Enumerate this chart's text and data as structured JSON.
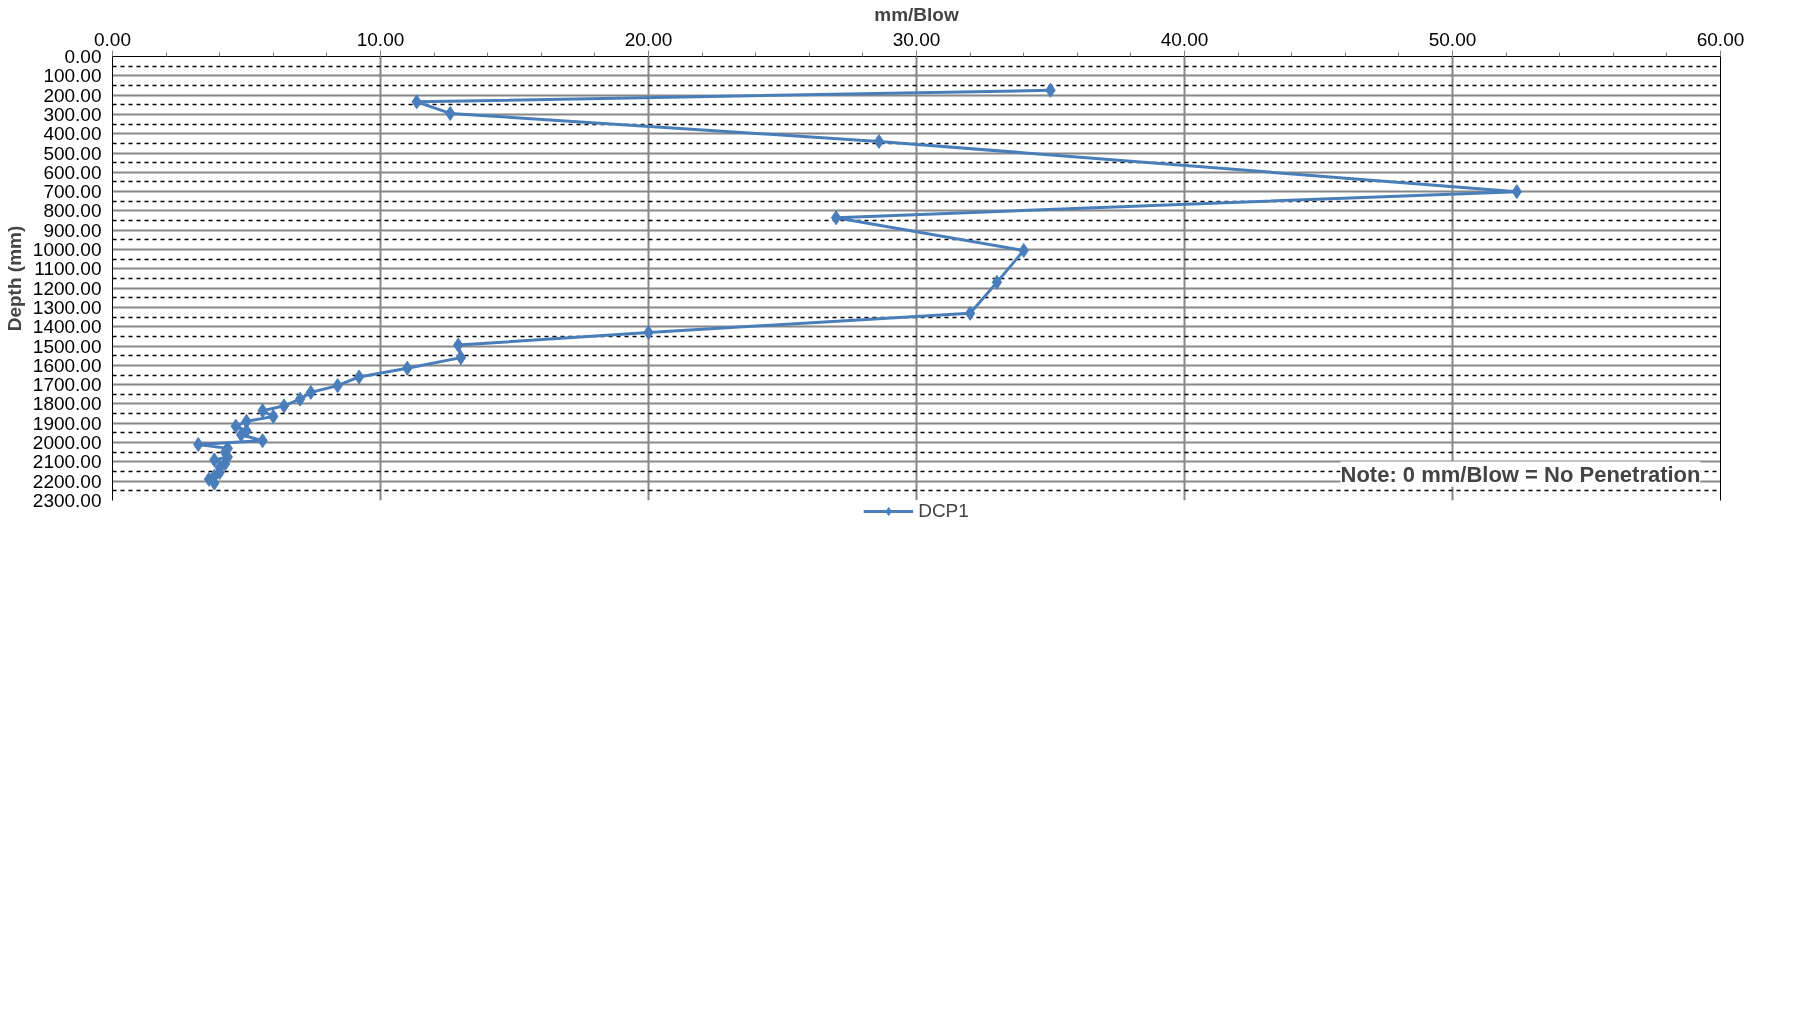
{
  "chart_data": {
    "type": "line",
    "xlabel": "mm/Blow",
    "ylabel": "Depth (mm)",
    "annotations": [
      "Note: 0 mm/Blow = No Penetration"
    ],
    "series": [
      {
        "name": "DCP1",
        "color": "#4a7ebb",
        "x": [
          35.0,
          11.35,
          12.6,
          28.6,
          52.4,
          27.0,
          34.0,
          33.0,
          32.0,
          20.0,
          12.9,
          13.0,
          11.0,
          9.2,
          8.4,
          7.4,
          7.0,
          6.4,
          5.6,
          6.0,
          5.0,
          4.6,
          5.0,
          4.8,
          5.6,
          3.2,
          4.3,
          4.2,
          4.3,
          3.8,
          4.2,
          4.0,
          4.0,
          3.8,
          3.6,
          3.8
        ],
        "values": [
          175,
          235,
          295,
          440,
          700,
          835,
          1005,
          1170,
          1330,
          1430,
          1495,
          1560,
          1615,
          1660,
          1705,
          1740,
          1775,
          1810,
          1835,
          1865,
          1890,
          1915,
          1940,
          1960,
          1990,
          2010,
          2030,
          2050,
          2075,
          2090,
          2110,
          2130,
          2155,
          2175,
          2190,
          2210
        ]
      }
    ],
    "xlim": [
      0,
      60
    ],
    "ylim": [
      2300,
      0
    ],
    "xticks": [
      {
        "value": 0,
        "label": "0.00"
      },
      {
        "value": 10,
        "label": "10.00"
      },
      {
        "value": 20,
        "label": "20.00"
      },
      {
        "value": 30,
        "label": "30.00"
      },
      {
        "value": 40,
        "label": "40.00"
      },
      {
        "value": 50,
        "label": "50.00"
      },
      {
        "value": 60,
        "label": "60.00"
      }
    ],
    "yticks": [
      {
        "value": 0,
        "label": "0.00"
      },
      {
        "value": 100,
        "label": "100.00"
      },
      {
        "value": 200,
        "label": "200.00"
      },
      {
        "value": 300,
        "label": "300.00"
      },
      {
        "value": 400,
        "label": "400.00"
      },
      {
        "value": 500,
        "label": "500.00"
      },
      {
        "value": 600,
        "label": "600.00"
      },
      {
        "value": 700,
        "label": "700.00"
      },
      {
        "value": 800,
        "label": "800.00"
      },
      {
        "value": 900,
        "label": "900.00"
      },
      {
        "value": 1000,
        "label": "1000.00"
      },
      {
        "value": 1100,
        "label": "1100.00"
      },
      {
        "value": 1200,
        "label": "1200.00"
      },
      {
        "value": 1300,
        "label": "1300.00"
      },
      {
        "value": 1400,
        "label": "1400.00"
      },
      {
        "value": 1500,
        "label": "1500.00"
      },
      {
        "value": 1600,
        "label": "1600.00"
      },
      {
        "value": 1700,
        "label": "1700.00"
      },
      {
        "value": 1800,
        "label": "1800.00"
      },
      {
        "value": 1900,
        "label": "1900.00"
      },
      {
        "value": 2000,
        "label": "2000.00"
      },
      {
        "value": 2100,
        "label": "2100.00"
      },
      {
        "value": 2200,
        "label": "2200.00"
      },
      {
        "value": 2300,
        "label": "2300.00"
      }
    ],
    "grid": true,
    "legend": "bottom",
    "marker": "diamond",
    "line_style": "solid"
  }
}
